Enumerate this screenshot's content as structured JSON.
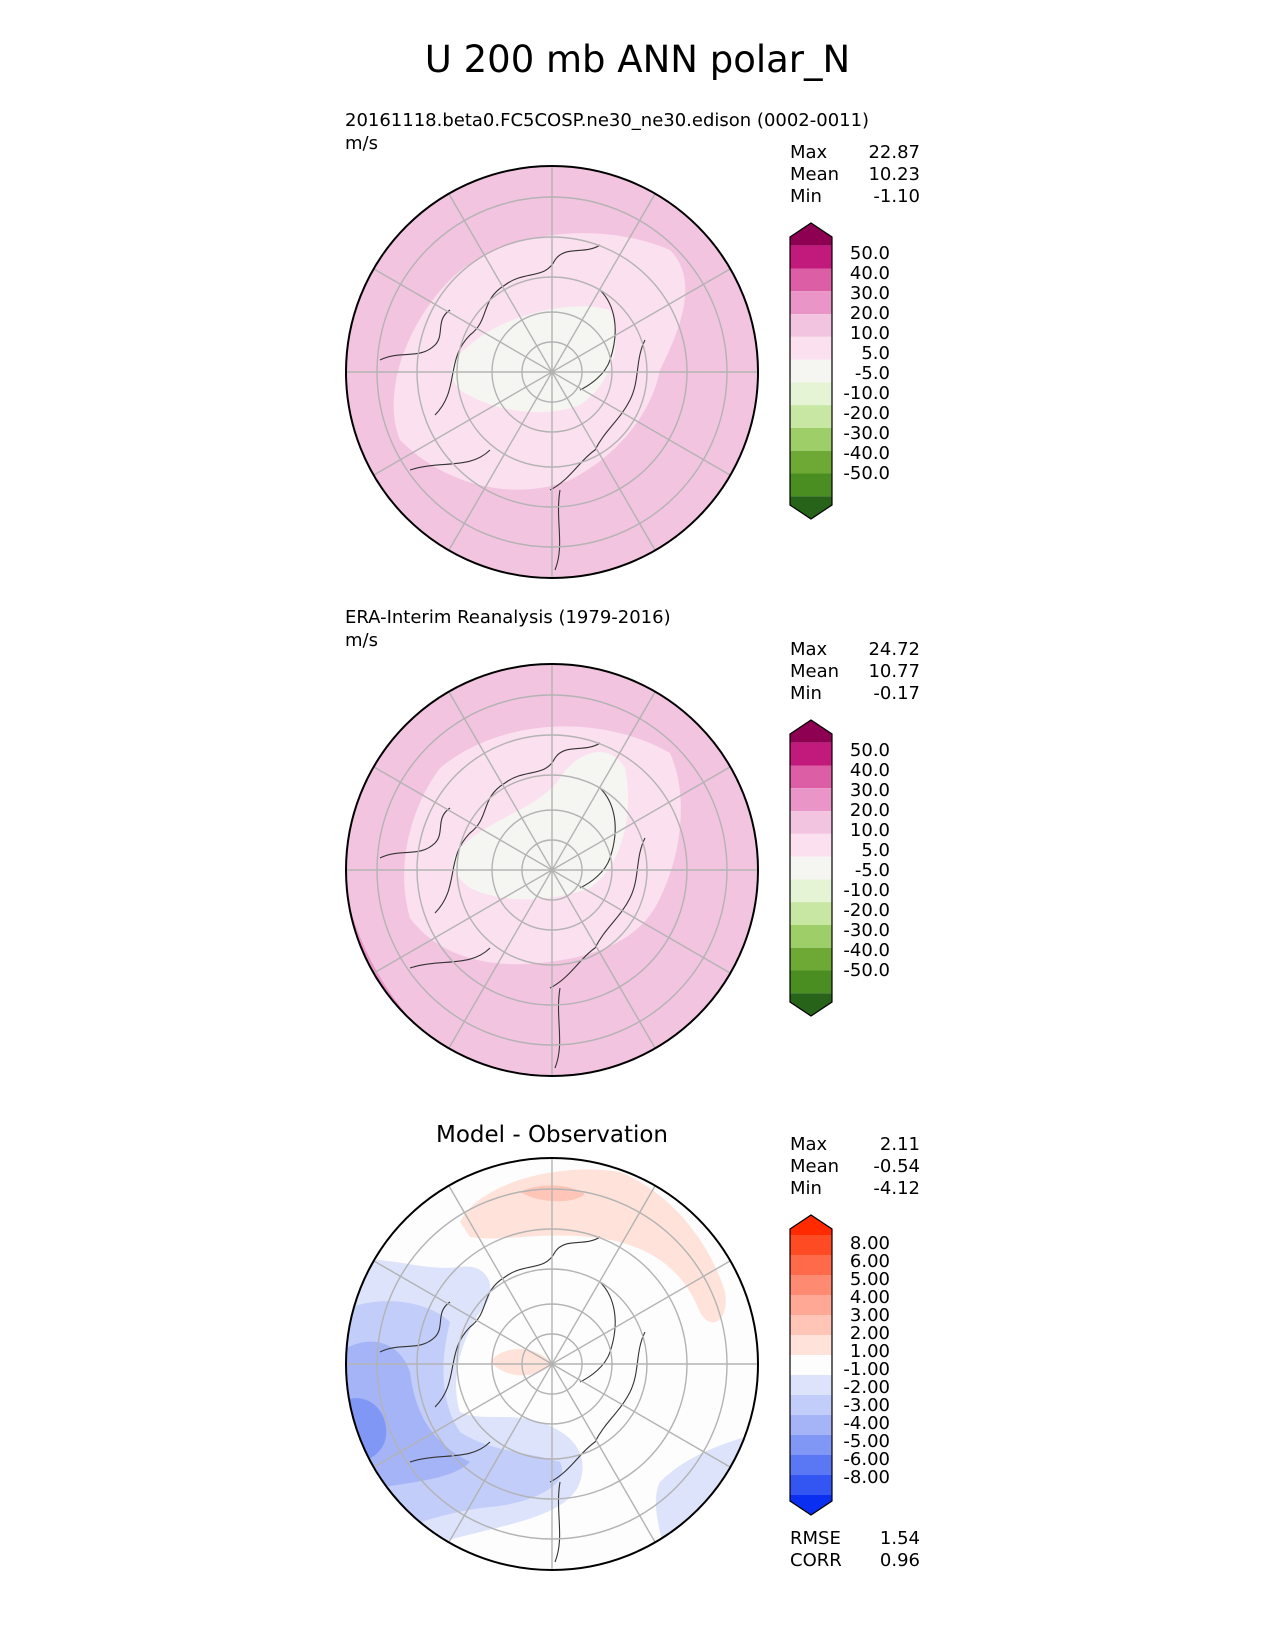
{
  "title": "U 200 mb ANN polar_N",
  "panels": [
    {
      "id": "test",
      "header": "20161118.beta0.FC5COSP.ne30_ne30.edison (0002-0011)",
      "units": "m/s",
      "stats": [
        {
          "label": "Max",
          "value": "22.87"
        },
        {
          "label": "Mean",
          "value": "10.23"
        },
        {
          "label": "Min",
          "value": "-1.10"
        }
      ],
      "colorbar": {
        "labels": [
          "50.0",
          "40.0",
          "30.0",
          "20.0",
          "10.0",
          "5.0",
          "-5.0",
          "-10.0",
          "-20.0",
          "-30.0",
          "-40.0",
          "-50.0"
        ],
        "colors": [
          "#8e0152",
          "#c2197c",
          "#dc5fa6",
          "#e995c7",
          "#f3c4e0",
          "#fbe0ef",
          "#f5f5f2",
          "#e6f4d6",
          "#c8e7a3",
          "#9dce67",
          "#6ea936",
          "#4a8e22",
          "#276419"
        ]
      }
    },
    {
      "id": "reference",
      "header": "ERA-Interim Reanalysis (1979-2016)",
      "units": "m/s",
      "stats": [
        {
          "label": "Max",
          "value": "24.72"
        },
        {
          "label": "Mean",
          "value": "10.77"
        },
        {
          "label": "Min",
          "value": "-0.17"
        }
      ],
      "colorbar": {
        "labels": [
          "50.0",
          "40.0",
          "30.0",
          "20.0",
          "10.0",
          "5.0",
          "-5.0",
          "-10.0",
          "-20.0",
          "-30.0",
          "-40.0",
          "-50.0"
        ],
        "colors": [
          "#8e0152",
          "#c2197c",
          "#dc5fa6",
          "#e995c7",
          "#f3c4e0",
          "#fbe0ef",
          "#f5f5f2",
          "#e6f4d6",
          "#c8e7a3",
          "#9dce67",
          "#6ea936",
          "#4a8e22",
          "#276419"
        ]
      }
    },
    {
      "id": "diff",
      "header": "Model - Observation",
      "stats": [
        {
          "label": "Max",
          "value": "2.11"
        },
        {
          "label": "Mean",
          "value": "-0.54"
        },
        {
          "label": "Min",
          "value": "-4.12"
        }
      ],
      "metrics": [
        {
          "label": "RMSE",
          "value": "1.54"
        },
        {
          "label": "CORR",
          "value": "0.96"
        }
      ],
      "colorbar": {
        "labels": [
          "8.00",
          "6.00",
          "5.00",
          "4.00",
          "3.00",
          "2.00",
          "1.00",
          "-1.00",
          "-2.00",
          "-3.00",
          "-4.00",
          "-5.00",
          "-6.00",
          "-8.00"
        ],
        "colors": [
          "#ff2a00",
          "#ff4b23",
          "#ff6a4a",
          "#ff8a72",
          "#ffa896",
          "#ffc6b8",
          "#ffe3da",
          "#fdfdfd",
          "#dce3fb",
          "#c2cdf9",
          "#a4b4f7",
          "#8197f5",
          "#5a78f3",
          "#3355f1",
          "#0a2ff0"
        ]
      }
    }
  ],
  "chart_data": [
    {
      "type": "heatmap",
      "title": "20161118.beta0.FC5COSP.ne30_ne30.edison (0002-0011)",
      "projection": "north polar stereographic",
      "units": "m/s",
      "variable": "U 200 mb ANN",
      "stats": {
        "max": 22.87,
        "mean": 10.23,
        "min": -1.1
      },
      "levels": [
        -50,
        -40,
        -30,
        -20,
        -10,
        -5,
        5,
        10,
        20,
        30,
        40,
        50
      ]
    },
    {
      "type": "heatmap",
      "title": "ERA-Interim Reanalysis (1979-2016)",
      "projection": "north polar stereographic",
      "units": "m/s",
      "variable": "U 200 mb ANN",
      "stats": {
        "max": 24.72,
        "mean": 10.77,
        "min": -0.17
      },
      "levels": [
        -50,
        -40,
        -30,
        -20,
        -10,
        -5,
        5,
        10,
        20,
        30,
        40,
        50
      ]
    },
    {
      "type": "heatmap",
      "title": "Model - Observation",
      "projection": "north polar stereographic",
      "stats": {
        "max": 2.11,
        "mean": -0.54,
        "min": -4.12,
        "rmse": 1.54,
        "corr": 0.96
      },
      "levels": [
        -8,
        -6,
        -5,
        -4,
        -3,
        -2,
        -1,
        1,
        2,
        3,
        4,
        5,
        6,
        8
      ]
    }
  ]
}
